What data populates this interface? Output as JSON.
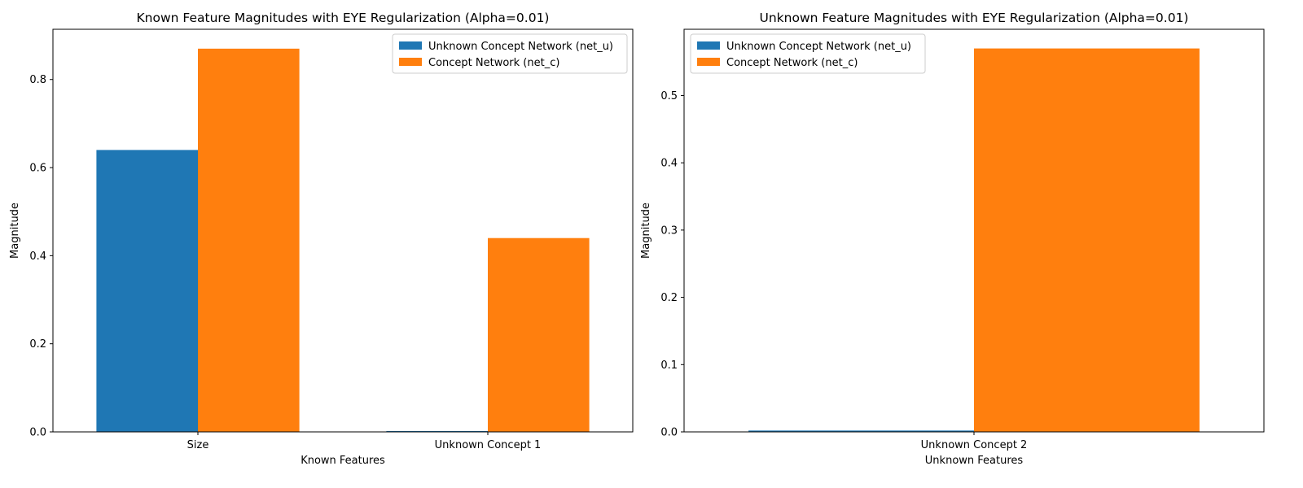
{
  "colors": {
    "net_u": "#1f77b4",
    "net_c": "#ff7f0e"
  },
  "chart_data": [
    {
      "type": "bar",
      "title": "Known Feature Magnitudes with EYE Regularization (Alpha=0.01)",
      "xlabel": "Known Features",
      "ylabel": "Magnitude",
      "categories": [
        "Size",
        "Unknown Concept 1"
      ],
      "series": [
        {
          "name": "Unknown Concept Network (net_u)",
          "values": [
            0.64,
            0.002
          ],
          "color": "#1f77b4"
        },
        {
          "name": "Concept Network (net_c)",
          "values": [
            0.87,
            0.44
          ],
          "color": "#ff7f0e"
        }
      ],
      "ylim": [
        0,
        0.914
      ],
      "yticks": [
        0.0,
        0.2,
        0.4,
        0.6,
        0.8
      ],
      "ytick_labels": [
        "0.0",
        "0.2",
        "0.4",
        "0.6",
        "0.8"
      ],
      "grid": false,
      "legend_position": "top-right"
    },
    {
      "type": "bar",
      "title": "Unknown Feature Magnitudes with EYE Regularization (Alpha=0.01)",
      "xlabel": "Unknown Features",
      "ylabel": "Magnitude",
      "categories": [
        "Unknown Concept 2"
      ],
      "series": [
        {
          "name": "Unknown Concept Network (net_u)",
          "values": [
            0.002
          ],
          "color": "#1f77b4"
        },
        {
          "name": "Concept Network (net_c)",
          "values": [
            0.57
          ],
          "color": "#ff7f0e"
        }
      ],
      "ylim": [
        0,
        0.5985
      ],
      "yticks": [
        0.0,
        0.1,
        0.2,
        0.3,
        0.4,
        0.5
      ],
      "ytick_labels": [
        "0.0",
        "0.1",
        "0.2",
        "0.3",
        "0.4",
        "0.5"
      ],
      "grid": false,
      "legend_position": "top-left"
    }
  ]
}
